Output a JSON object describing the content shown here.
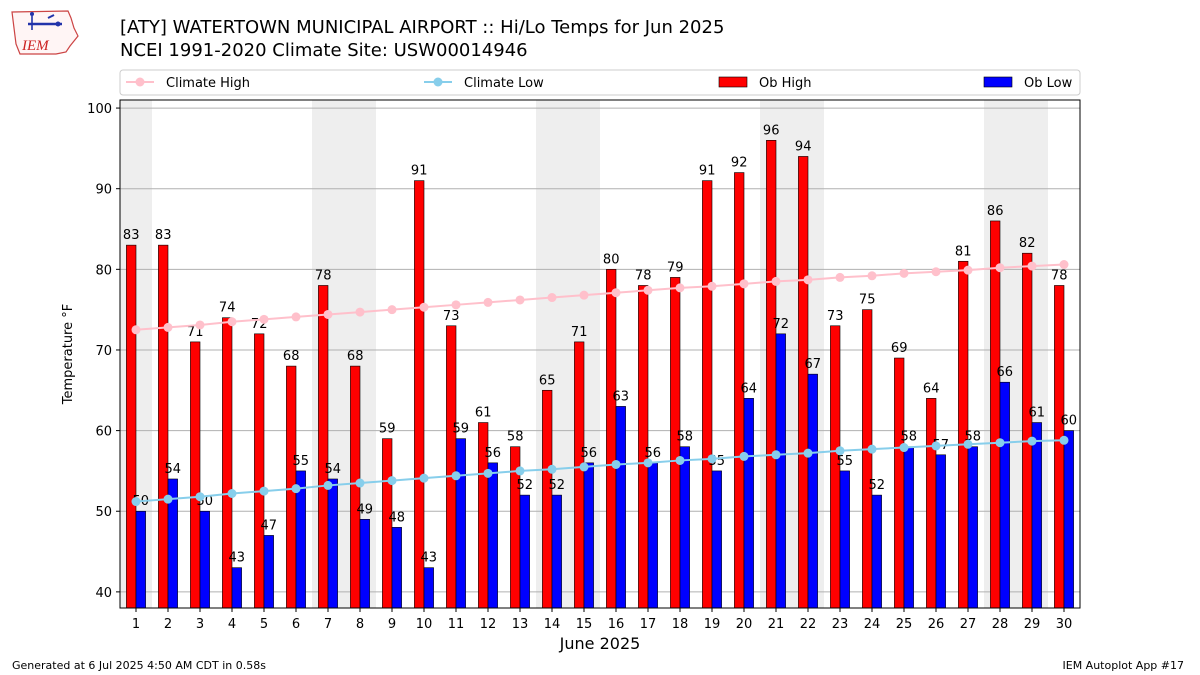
{
  "header": {
    "title": "[ATY] WATERTOWN MUNICIPAL AIRPORT :: Hi/Lo Temps for Jun 2025",
    "subtitle": "NCEI 1991-2020 Climate Site: USW00014946",
    "logo_text": "IEM"
  },
  "footer": {
    "generated": "Generated at 6 Jul 2025 4:50 AM CDT in 0.58s",
    "app": "IEM Autoplot App #17"
  },
  "colors": {
    "ob_high": "#ff0000",
    "ob_low": "#0000ff",
    "climate_high": "#ffc0cb",
    "climate_low": "#87ceeb",
    "weekend_band": "#eeeeee",
    "grid": "#b0b0b0"
  },
  "chart_data": {
    "type": "bar",
    "xlabel": "June 2025",
    "ylabel": "Temperature °F",
    "ylim": [
      38,
      101
    ],
    "yticks": [
      40,
      50,
      60,
      70,
      80,
      90,
      100
    ],
    "grid": true,
    "legend_position": "top",
    "weekend_days": [
      1,
      7,
      8,
      14,
      15,
      21,
      22,
      28,
      29
    ],
    "categories": [
      "1",
      "2",
      "3",
      "4",
      "5",
      "6",
      "7",
      "8",
      "9",
      "10",
      "11",
      "12",
      "13",
      "14",
      "15",
      "16",
      "17",
      "18",
      "19",
      "20",
      "21",
      "22",
      "23",
      "24",
      "25",
      "26",
      "27",
      "28",
      "29",
      "30"
    ],
    "series": [
      {
        "name": "Ob High",
        "kind": "bar",
        "values": [
          83,
          83,
          71,
          74,
          72,
          68,
          78,
          68,
          59,
          91,
          73,
          61,
          58,
          65,
          71,
          80,
          78,
          79,
          91,
          92,
          96,
          94,
          73,
          75,
          69,
          64,
          81,
          86,
          82,
          78
        ]
      },
      {
        "name": "Ob Low",
        "kind": "bar",
        "values": [
          50,
          54,
          50,
          43,
          47,
          55,
          54,
          49,
          48,
          43,
          59,
          56,
          52,
          52,
          56,
          63,
          56,
          58,
          55,
          64,
          72,
          67,
          55,
          52,
          58,
          57,
          58,
          66,
          61,
          60
        ]
      },
      {
        "name": "Climate High",
        "kind": "line",
        "values": [
          72.5,
          72.8,
          73.1,
          73.5,
          73.8,
          74.1,
          74.4,
          74.7,
          75.0,
          75.3,
          75.6,
          75.9,
          76.2,
          76.5,
          76.8,
          77.1,
          77.4,
          77.7,
          77.9,
          78.2,
          78.5,
          78.7,
          79.0,
          79.2,
          79.5,
          79.7,
          79.9,
          80.2,
          80.4,
          80.6
        ]
      },
      {
        "name": "Climate Low",
        "kind": "line",
        "values": [
          51.2,
          51.5,
          51.8,
          52.2,
          52.5,
          52.8,
          53.2,
          53.5,
          53.8,
          54.1,
          54.4,
          54.7,
          55.0,
          55.2,
          55.5,
          55.8,
          56.0,
          56.3,
          56.5,
          56.8,
          57.0,
          57.2,
          57.5,
          57.7,
          57.9,
          58.1,
          58.3,
          58.5,
          58.7,
          58.8
        ]
      }
    ]
  }
}
